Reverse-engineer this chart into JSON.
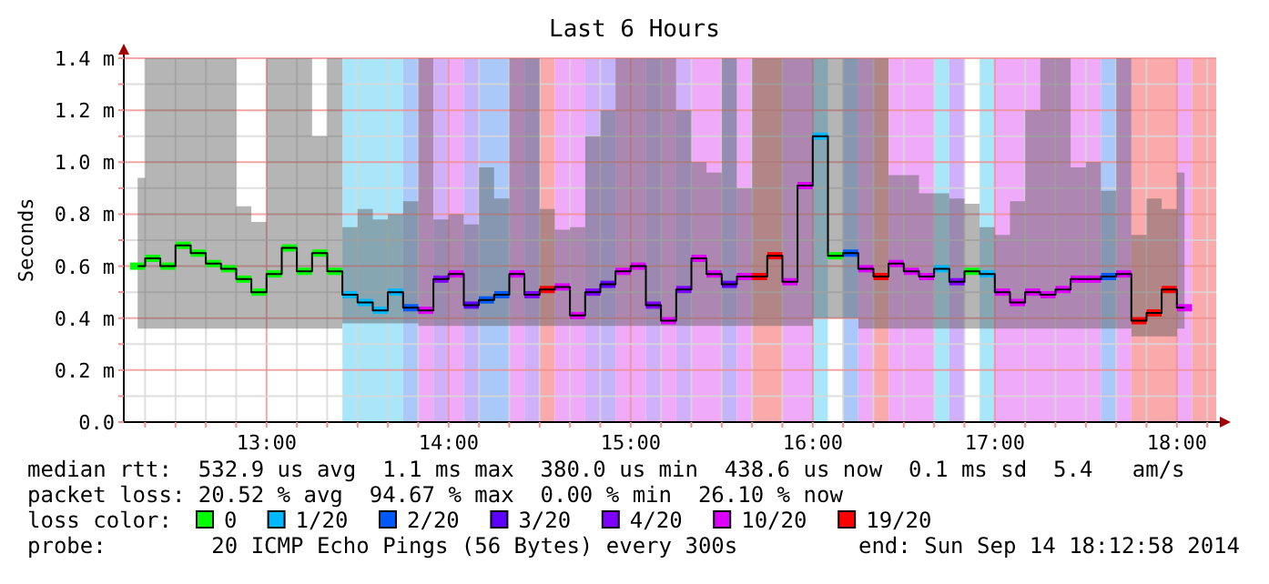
{
  "chart_data": {
    "type": "step",
    "title": "Last 6 Hours",
    "ylabel": "Seconds",
    "legend_title": "loss color:",
    "legend": "bottom",
    "grid": true,
    "xlim": [
      12.216,
      18.216
    ],
    "xticks": [
      {
        "value": 12.333,
        "label": null
      },
      {
        "value": 12.5,
        "label": null
      },
      {
        "value": 12.667,
        "label": null
      },
      {
        "value": 12.833,
        "label": null
      },
      {
        "value": 13,
        "label": "13:00"
      },
      {
        "value": 13.167,
        "label": null
      },
      {
        "value": 13.333,
        "label": null
      },
      {
        "value": 13.5,
        "label": null
      },
      {
        "value": 13.667,
        "label": null
      },
      {
        "value": 13.833,
        "label": null
      },
      {
        "value": 14,
        "label": "14:00"
      },
      {
        "value": 14.167,
        "label": null
      },
      {
        "value": 14.333,
        "label": null
      },
      {
        "value": 14.5,
        "label": null
      },
      {
        "value": 14.667,
        "label": null
      },
      {
        "value": 14.833,
        "label": null
      },
      {
        "value": 15,
        "label": "15:00"
      },
      {
        "value": 15.167,
        "label": null
      },
      {
        "value": 15.333,
        "label": null
      },
      {
        "value": 15.5,
        "label": null
      },
      {
        "value": 15.667,
        "label": null
      },
      {
        "value": 15.833,
        "label": null
      },
      {
        "value": 16,
        "label": "16:00"
      },
      {
        "value": 16.167,
        "label": null
      },
      {
        "value": 16.333,
        "label": null
      },
      {
        "value": 16.5,
        "label": null
      },
      {
        "value": 16.667,
        "label": null
      },
      {
        "value": 16.833,
        "label": null
      },
      {
        "value": 17,
        "label": "17:00"
      },
      {
        "value": 17.167,
        "label": null
      },
      {
        "value": 17.333,
        "label": null
      },
      {
        "value": 17.5,
        "label": null
      },
      {
        "value": 17.667,
        "label": null
      },
      {
        "value": 17.833,
        "label": null
      },
      {
        "value": 18,
        "label": "18:00"
      },
      {
        "value": 18.167,
        "label": null
      }
    ],
    "ylim": [
      0,
      1.4
    ],
    "yticks": [
      {
        "value": 0,
        "label": "0.0"
      },
      {
        "value": 0.1,
        "label": null
      },
      {
        "value": 0.2,
        "label": "0.2 m"
      },
      {
        "value": 0.3,
        "label": null
      },
      {
        "value": 0.4,
        "label": "0.4 m"
      },
      {
        "value": 0.5,
        "label": null
      },
      {
        "value": 0.6,
        "label": "0.6 m"
      },
      {
        "value": 0.7,
        "label": null
      },
      {
        "value": 0.8,
        "label": "0.8 m"
      },
      {
        "value": 0.9,
        "label": null
      },
      {
        "value": 1.0,
        "label": "1.0 m"
      },
      {
        "value": 1.1,
        "label": null
      },
      {
        "value": 1.2,
        "label": "1.2 m"
      },
      {
        "value": 1.3,
        "label": null
      },
      {
        "value": 1.4,
        "label": "1.4 m"
      }
    ],
    "x": [
      12.292,
      12.375,
      12.458,
      12.542,
      12.625,
      12.708,
      12.792,
      12.875,
      12.958,
      13.042,
      13.125,
      13.208,
      13.292,
      13.375,
      13.458,
      13.542,
      13.625,
      13.708,
      13.792,
      13.875,
      13.958,
      14.042,
      14.125,
      14.208,
      14.292,
      14.375,
      14.458,
      14.542,
      14.625,
      14.708,
      14.792,
      14.875,
      14.958,
      15.042,
      15.125,
      15.208,
      15.292,
      15.375,
      15.458,
      15.542,
      15.625,
      15.708,
      15.792,
      15.875,
      15.958,
      16.042,
      16.125,
      16.208,
      16.292,
      16.375,
      16.458,
      16.542,
      16.625,
      16.708,
      16.792,
      16.875,
      16.958,
      17.042,
      17.125,
      17.208,
      17.292,
      17.375,
      17.458,
      17.542,
      17.625,
      17.708,
      17.792,
      17.875,
      17.958,
      18.042
    ],
    "series": [
      {
        "color": "#000000",
        "values": [
          0.6,
          0.63,
          0.6,
          0.68,
          0.65,
          0.61,
          0.59,
          0.55,
          0.5,
          0.57,
          0.67,
          0.58,
          0.65,
          0.58,
          0.49,
          0.46,
          0.43,
          0.5,
          0.44,
          0.43,
          0.55,
          0.57,
          0.45,
          0.47,
          0.49,
          0.57,
          0.49,
          0.51,
          0.52,
          0.41,
          0.5,
          0.53,
          0.58,
          0.6,
          0.45,
          0.39,
          0.51,
          0.63,
          0.57,
          0.53,
          0.56,
          0.56,
          0.64,
          0.54,
          0.91,
          1.1,
          0.64,
          0.65,
          0.59,
          0.56,
          0.61,
          0.58,
          0.56,
          0.59,
          0.54,
          0.58,
          0.57,
          0.5,
          0.46,
          0.5,
          0.49,
          0.51,
          0.55,
          0.55,
          0.56,
          0.57,
          0.39,
          0.42,
          0.51,
          0.44
        ],
        "lower": [
          0.36,
          0.36,
          0.36,
          0.36,
          0.36,
          0.36,
          0.36,
          0.36,
          0.36,
          0.36,
          0.36,
          0.36,
          0.36,
          0.36,
          0.38,
          0.38,
          0.38,
          0.38,
          0.38,
          0.37,
          0.37,
          0.37,
          0.37,
          0.37,
          0.37,
          0.37,
          0.37,
          0.37,
          0.37,
          0.37,
          0.37,
          0.37,
          0.37,
          0.37,
          0.37,
          0.37,
          0.37,
          0.37,
          0.37,
          0.37,
          0.37,
          0.37,
          0.37,
          0.37,
          0.37,
          0.4,
          0.4,
          0.4,
          0.36,
          0.36,
          0.36,
          0.36,
          0.36,
          0.36,
          0.36,
          0.36,
          0.36,
          0.36,
          0.36,
          0.36,
          0.36,
          0.36,
          0.36,
          0.36,
          0.36,
          0.36,
          0.33,
          0.33,
          0.33,
          0.36
        ],
        "upper": [
          0.94,
          1.4,
          1.4,
          1.4,
          1.4,
          1.4,
          1.4,
          0.83,
          0.77,
          1.4,
          1.4,
          1.4,
          1.1,
          1.4,
          0.75,
          0.82,
          0.78,
          0.8,
          0.85,
          1.4,
          0.78,
          0.8,
          0.76,
          0.98,
          0.86,
          1.4,
          1.4,
          0.82,
          0.74,
          0.75,
          1.1,
          1.2,
          1.4,
          1.4,
          1.4,
          1.4,
          1.2,
          1.0,
          0.96,
          1.4,
          0.9,
          1.4,
          1.4,
          1.4,
          1.4,
          1.4,
          1.4,
          1.4,
          1.4,
          1.4,
          0.95,
          0.95,
          0.88,
          0.88,
          0.86,
          0.84,
          0.75,
          0.72,
          0.85,
          1.2,
          1.4,
          1.4,
          0.98,
          1.0,
          0.89,
          1.4,
          0.72,
          0.86,
          0.82,
          0.96
        ]
      },
      {
        "name": "0",
        "type": "scatter",
        "color": "#00ff00",
        "x": [
          12.292,
          12.375,
          12.458,
          12.542,
          12.625,
          12.708,
          12.792,
          12.875,
          12.958,
          13.042,
          13.125,
          13.208,
          13.292,
          13.375,
          16.125,
          16.875
        ],
        "values": [
          0.6,
          0.63,
          0.6,
          0.68,
          0.65,
          0.61,
          0.59,
          0.55,
          0.5,
          0.57,
          0.67,
          0.58,
          0.65,
          0.58,
          0.64,
          0.58
        ]
      },
      {
        "name": "1/20",
        "type": "scatter",
        "color": "#00b8ff",
        "x": [
          13.458,
          13.542,
          13.625,
          13.708,
          16.042,
          16.708,
          16.958
        ],
        "values": [
          0.49,
          0.46,
          0.43,
          0.5,
          1.1,
          0.59,
          0.57
        ]
      },
      {
        "name": "2/20",
        "type": "scatter",
        "color": "#0059ff",
        "x": [
          13.792,
          14.208,
          14.292,
          16.208,
          17.625
        ],
        "values": [
          0.44,
          0.47,
          0.49,
          0.65,
          0.56
        ]
      },
      {
        "name": "3/20",
        "type": "scatter",
        "color": "#5e00ff",
        "x": [
          14.125,
          14.875,
          15.542
        ],
        "values": [
          0.45,
          0.53,
          0.53
        ]
      },
      {
        "name": "4/20",
        "type": "scatter",
        "color": "#7e00ff",
        "x": [
          13.958,
          14.458,
          14.792,
          15.125,
          15.292,
          16.792
        ],
        "values": [
          0.55,
          0.49,
          0.5,
          0.45,
          0.51,
          0.54
        ]
      },
      {
        "name": "10/20",
        "type": "scatter",
        "color": "#dd00ff",
        "x": [
          13.875,
          14.042,
          14.375,
          14.625,
          14.708,
          14.958,
          15.042,
          15.208,
          15.375,
          15.458,
          15.625,
          15.875,
          15.958,
          16.292,
          16.458,
          16.542,
          16.625,
          17.042,
          17.125,
          17.208,
          17.292,
          17.375,
          17.458,
          17.542,
          17.708,
          18.042
        ],
        "values": [
          0.43,
          0.57,
          0.57,
          0.52,
          0.41,
          0.58,
          0.6,
          0.39,
          0.63,
          0.57,
          0.56,
          0.54,
          0.91,
          0.59,
          0.61,
          0.58,
          0.56,
          0.5,
          0.46,
          0.5,
          0.49,
          0.51,
          0.55,
          0.55,
          0.57,
          0.44
        ]
      },
      {
        "name": "19/20",
        "type": "scatter",
        "color": "#ff0000",
        "x": [
          14.542,
          15.708,
          15.792,
          16.375,
          17.792,
          17.875,
          17.958
        ],
        "values": [
          0.51,
          0.56,
          0.64,
          0.56,
          0.39,
          0.42,
          0.51
        ]
      }
    ],
    "bands": [
      {
        "axis": "x",
        "from": 13.417,
        "to": 13.75,
        "color": "#aae6fa"
      },
      {
        "axis": "x",
        "from": 13.75,
        "to": 13.833,
        "color": "#aac8fa"
      },
      {
        "axis": "x",
        "from": 13.833,
        "to": 13.917,
        "color": "#f0aafa"
      },
      {
        "axis": "x",
        "from": 13.917,
        "to": 14,
        "color": "#d0b0fa"
      },
      {
        "axis": "x",
        "from": 14,
        "to": 14.083,
        "color": "#f0aafa"
      },
      {
        "axis": "x",
        "from": 14.083,
        "to": 14.167,
        "color": "#c4b4fa"
      },
      {
        "axis": "x",
        "from": 14.167,
        "to": 14.333,
        "color": "#aac8fa"
      },
      {
        "axis": "x",
        "from": 14.333,
        "to": 14.417,
        "color": "#f0aafa"
      },
      {
        "axis": "x",
        "from": 14.417,
        "to": 14.5,
        "color": "#d0b0fa"
      },
      {
        "axis": "x",
        "from": 14.5,
        "to": 14.583,
        "color": "#faaaaa"
      },
      {
        "axis": "x",
        "from": 14.583,
        "to": 14.75,
        "color": "#f0aafa"
      },
      {
        "axis": "x",
        "from": 14.75,
        "to": 14.833,
        "color": "#d0b0fa"
      },
      {
        "axis": "x",
        "from": 14.833,
        "to": 14.917,
        "color": "#c4b4fa"
      },
      {
        "axis": "x",
        "from": 14.917,
        "to": 15.083,
        "color": "#f0aafa"
      },
      {
        "axis": "x",
        "from": 15.083,
        "to": 15.167,
        "color": "#d0b0fa"
      },
      {
        "axis": "x",
        "from": 15.167,
        "to": 15.25,
        "color": "#f0aafa"
      },
      {
        "axis": "x",
        "from": 15.25,
        "to": 15.333,
        "color": "#d0b0fa"
      },
      {
        "axis": "x",
        "from": 15.333,
        "to": 15.5,
        "color": "#f0aafa"
      },
      {
        "axis": "x",
        "from": 15.5,
        "to": 15.583,
        "color": "#c4b4fa"
      },
      {
        "axis": "x",
        "from": 15.583,
        "to": 15.667,
        "color": "#f0aafa"
      },
      {
        "axis": "x",
        "from": 15.667,
        "to": 15.833,
        "color": "#faaaaa"
      },
      {
        "axis": "x",
        "from": 15.833,
        "to": 16,
        "color": "#f0aafa"
      },
      {
        "axis": "x",
        "from": 16,
        "to": 16.083,
        "color": "#aae6fa"
      },
      {
        "axis": "x",
        "from": 16.167,
        "to": 16.25,
        "color": "#aac8fa"
      },
      {
        "axis": "x",
        "from": 16.25,
        "to": 16.333,
        "color": "#f0aafa"
      },
      {
        "axis": "x",
        "from": 16.333,
        "to": 16.417,
        "color": "#faaaaa"
      },
      {
        "axis": "x",
        "from": 16.417,
        "to": 16.667,
        "color": "#f0aafa"
      },
      {
        "axis": "x",
        "from": 16.667,
        "to": 16.75,
        "color": "#aae6fa"
      },
      {
        "axis": "x",
        "from": 16.75,
        "to": 16.833,
        "color": "#d0b0fa"
      },
      {
        "axis": "x",
        "from": 16.917,
        "to": 17,
        "color": "#aae6fa"
      },
      {
        "axis": "x",
        "from": 17,
        "to": 17.583,
        "color": "#f0aafa"
      },
      {
        "axis": "x",
        "from": 17.583,
        "to": 17.667,
        "color": "#aac8fa"
      },
      {
        "axis": "x",
        "from": 17.667,
        "to": 17.75,
        "color": "#f0aafa"
      },
      {
        "axis": "x",
        "from": 17.75,
        "to": 18,
        "color": "#faaaaa"
      },
      {
        "axis": "x",
        "from": 18,
        "to": 18.083,
        "color": "#f0aafa"
      },
      {
        "axis": "x",
        "from": 18.083,
        "to": 18.216,
        "color": "#faaaaa"
      }
    ],
    "annotations": [
      "median rtt:  532.9 us avg  1.1 ms max  380.0 us min  438.6 us now  0.1 ms sd  5.4   am/s",
      "packet loss: 20.52 % avg  94.67 % max  0.00 % min  26.10 % now",
      "probe:        20 ICMP Echo Pings (56 Bytes) every 300s",
      "end: Sun Sep 14 18:12:58 2014"
    ]
  }
}
